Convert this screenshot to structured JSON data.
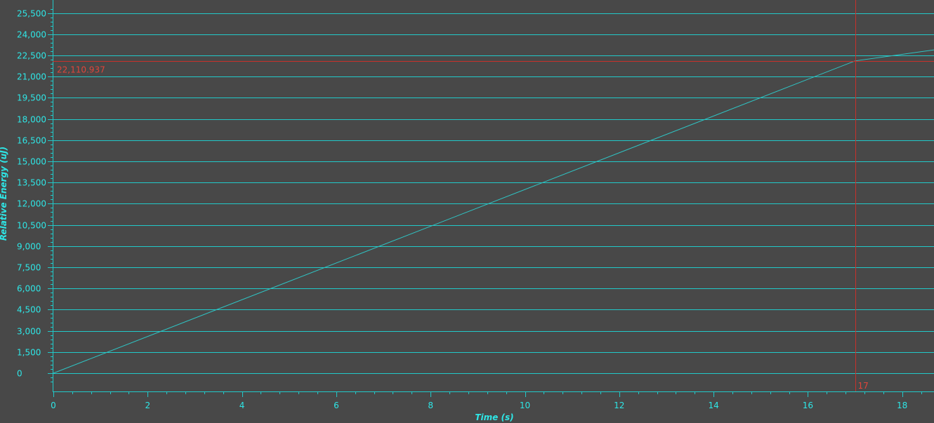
{
  "colors": {
    "background": "#484848",
    "grid": "#21c9c9",
    "series": "#2fc4c4",
    "axis_text": "#2ee6e6",
    "cursor": "#c8302a",
    "cursor_text": "#e0453a"
  },
  "chart_data": {
    "type": "line",
    "title": "",
    "xlabel": "Time  (s)",
    "ylabel": "Relative Energy  (uJ)",
    "xlim": [
      0,
      18.7
    ],
    "ylim": [
      -900,
      26000
    ],
    "x_ticks": [
      0,
      2,
      4,
      6,
      8,
      10,
      12,
      14,
      16,
      18
    ],
    "x_tick_labels": [
      "0",
      "2",
      "4",
      "6",
      "8",
      "10",
      "12",
      "14",
      "16",
      "18"
    ],
    "y_ticks": [
      0,
      1500,
      3000,
      4500,
      6000,
      7500,
      9000,
      10500,
      12000,
      13500,
      15000,
      16500,
      18000,
      19500,
      21000,
      22500,
      24000,
      25500
    ],
    "y_tick_labels": [
      "0",
      "1,500",
      "3,000",
      "4,500",
      "6,000",
      "7,500",
      "9,000",
      "10,500",
      "12,000",
      "13,500",
      "15,000",
      "16,500",
      "18,000",
      "19,500",
      "21,000",
      "22,500",
      "24,000",
      "25,500"
    ],
    "grid": true,
    "series": [
      {
        "x": [
          0,
          17,
          18.7
        ],
        "y": [
          0,
          22110.937,
          22900
        ]
      }
    ],
    "cursor": {
      "x": 17,
      "y": 22110.937,
      "x_label": "17",
      "y_label": "22,110.937"
    }
  }
}
